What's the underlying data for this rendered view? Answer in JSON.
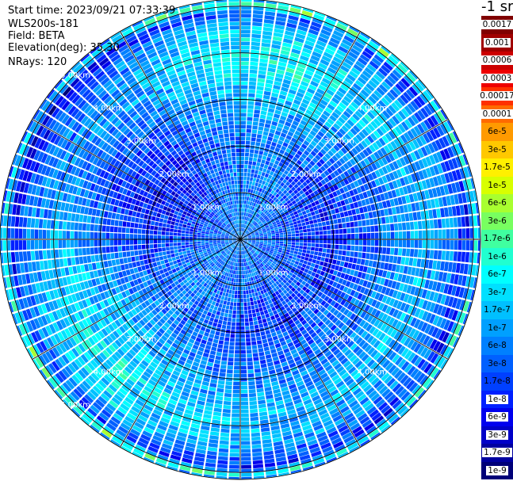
{
  "info": {
    "start_time": "Start time: 2023/09/21 07:33:39",
    "station": "WLS200s-181",
    "field": "Field: BETA",
    "elevation": "Elevation(deg): 35.30",
    "nrays": "NRays: 120"
  },
  "colorbar": {
    "title": "-1 sr",
    "labels": [
      "0.0017",
      "0.001",
      "0.0006",
      "0.0003",
      "0.00017",
      "0.0001",
      "6e-5",
      "3e-5",
      "1.7e-5",
      "1e-5",
      "6e-6",
      "3e-6",
      "1.7e-6",
      "1e-6",
      "6e-7",
      "3e-7",
      "1.7e-7",
      "1e-7",
      "6e-8",
      "3e-8",
      "1.7e-8",
      "1e-8",
      "6e-9",
      "3e-9",
      "1.7e-9",
      "1e-9"
    ],
    "colors": [
      "#800000",
      "#a00000",
      "#cc0000",
      "#ee0000",
      "#ff3000",
      "#ff6a00",
      "#ff9a00",
      "#ffc800",
      "#fff000",
      "#d8ff00",
      "#a8ff30",
      "#78ff60",
      "#40ffa0",
      "#20ffd0",
      "#00ffff",
      "#00e0ff",
      "#00c0ff",
      "#00a0ff",
      "#0080ff",
      "#0060ff",
      "#0040ff",
      "#0020ff",
      "#0000ee",
      "#0000c8",
      "#0000a0",
      "#000078"
    ]
  },
  "chart_data": {
    "type": "heatmap",
    "projection": "polar-ppi",
    "nrays": 120,
    "range_rings_km": [
      1,
      2,
      3,
      4,
      5
    ],
    "ring_labels": [
      "1.00km",
      "2.00km",
      "3.00km",
      "4.00km",
      "5.00km"
    ],
    "max_range_km": 5.15,
    "spokes_every_deg": 30,
    "color_scale": "log",
    "value_range": [
      1e-09,
      0.0017
    ],
    "radial_profile": [
      {
        "range_km": 0.0,
        "beta": 6e-08
      },
      {
        "range_km": 1.0,
        "beta": 3e-08
      },
      {
        "range_km": 2.0,
        "beta": 1.7e-08
      },
      {
        "range_km": 3.0,
        "beta": 6e-08
      },
      {
        "range_km": 3.8,
        "beta": 2e-07
      },
      {
        "range_km": 4.5,
        "beta": 1e-07
      },
      {
        "range_km": 4.9,
        "beta": 1e-08
      },
      {
        "range_km": 5.05,
        "beta": 1e-06
      },
      {
        "range_km": 5.15,
        "beta": 3e-08
      }
    ]
  }
}
